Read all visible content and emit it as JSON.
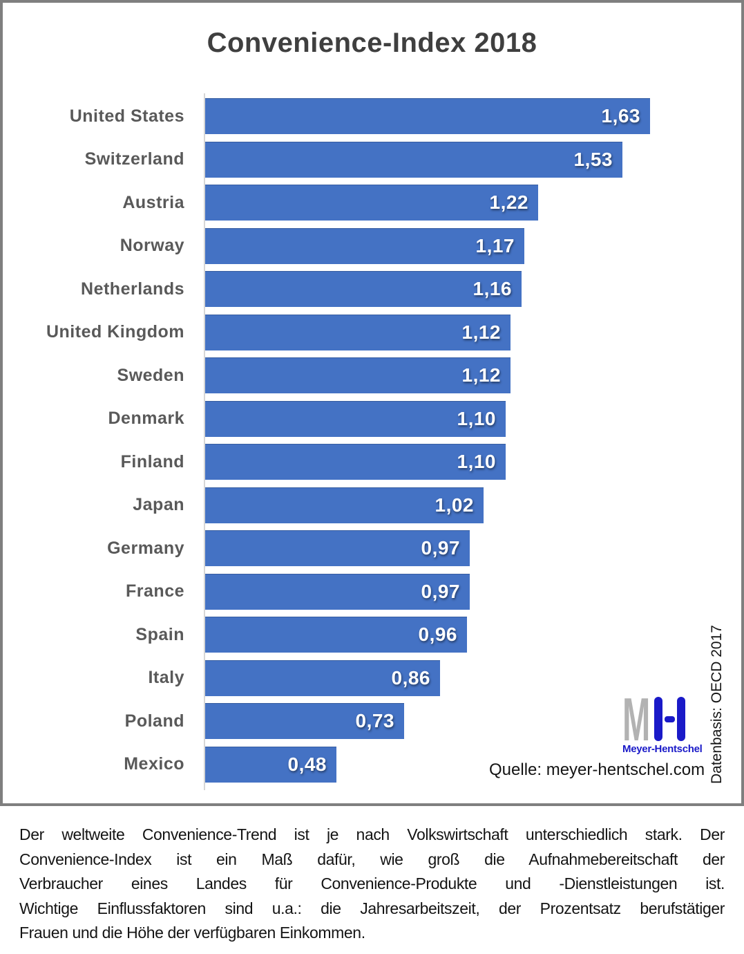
{
  "title": "Convenience-Index 2018",
  "chart_data": {
    "type": "bar",
    "orientation": "horizontal",
    "title": "Convenience-Index 2018",
    "categories": [
      "United States",
      "Switzerland",
      "Austria",
      "Norway",
      "Netherlands",
      "United Kingdom",
      "Sweden",
      "Denmark",
      "Finland",
      "Japan",
      "Germany",
      "France",
      "Spain",
      "Italy",
      "Poland",
      "Mexico"
    ],
    "values": [
      1.63,
      1.53,
      1.22,
      1.17,
      1.16,
      1.12,
      1.12,
      1.1,
      1.1,
      1.02,
      0.97,
      0.97,
      0.96,
      0.86,
      0.73,
      0.48
    ],
    "value_labels": [
      "1,63",
      "1,53",
      "1,22",
      "1,17",
      "1,16",
      "1,12",
      "1,12",
      "1,10",
      "1,10",
      "1,02",
      "0,97",
      "0,97",
      "0,96",
      "0,86",
      "0,73",
      "0,48"
    ],
    "value_label_position": "inside-end",
    "bar_color": "#4472C4",
    "grid": false,
    "legend": false
  },
  "source_label": "Quelle: meyer-hentschel.com",
  "data_basis_label": "Datenbasis: OECD 2017",
  "logo": {
    "monogram_m": "M",
    "name": "Meyer-Hentschel",
    "gray": "#B2B2B2",
    "blue": "#1A1AC8"
  },
  "description_lines": [
    "Der weltweite Convenience-Trend ist je nach Volkswirtschaft unterschiedlich stark. Der",
    "Convenience-Index ist ein Maß dafür, wie groß die Aufnahmebereitschaft der",
    "Verbraucher eines Landes für Convenience-Produkte und -Dienstleistungen ist.",
    "Wichtige Einflussfaktoren sind u.a.: die Jahresarbeitszeit, der Prozentsatz berufstätiger",
    "Frauen und die Höhe der verfügbaren Einkommen."
  ],
  "colors": {
    "bar": "#4472C4",
    "frame_border": "#7F7F7F",
    "title_text": "#3F3F3F",
    "category_label_text": "#595959",
    "value_label_text": "#FFFFFF",
    "axis_line": "#D6D6D6",
    "body_text": "#141414"
  }
}
